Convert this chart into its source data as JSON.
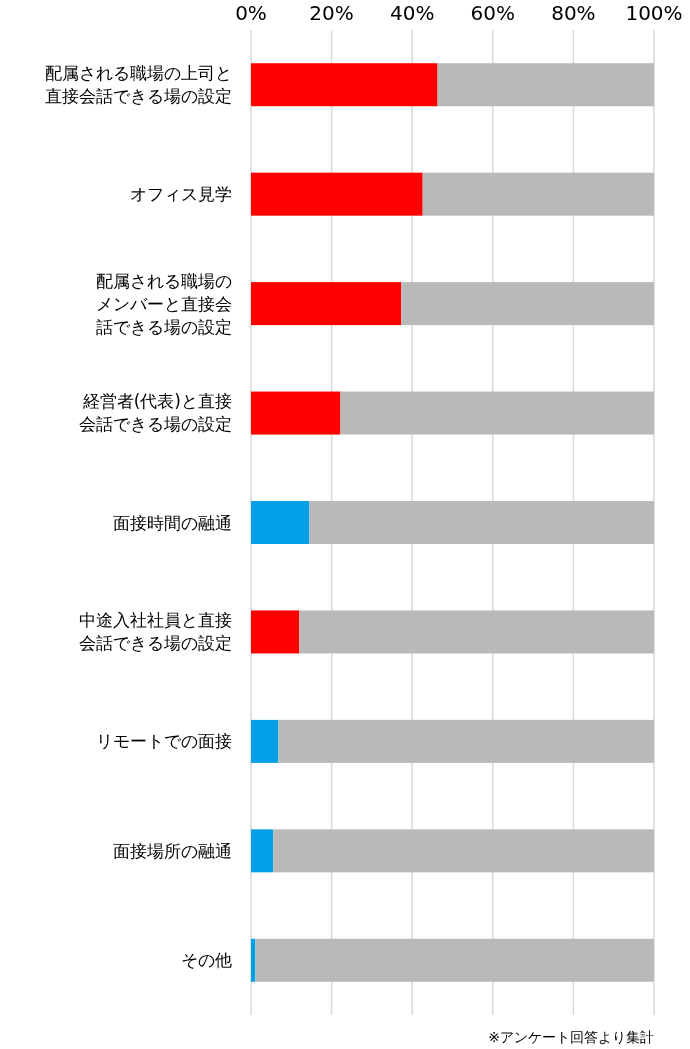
{
  "chart_data": {
    "type": "bar",
    "orientation": "horizontal",
    "stacked": true,
    "categories": [
      "配属される職場の上司と直接会話できる場の設定",
      "オフィス見学",
      "配属される職場のメンバーと直接会話できる場の設定",
      "経営者(代表)と直接会話できる場の設定",
      "面接時間の融通",
      "中途入社社員と直接会話できる場の設定",
      "リモートでの面接",
      "面接場所の融通",
      "その他"
    ],
    "series": [
      {
        "colors": [
          "#ff0000",
          "#ff0000",
          "#ff0000",
          "#ff0000",
          "#03a0e8",
          "#ff0000",
          "#03a0e8",
          "#03a0e8",
          "#03a0e8"
        ],
        "values": [
          46.3,
          42.6,
          37.3,
          22.2,
          14.5,
          12.0,
          6.8,
          5.5,
          1.1
        ]
      },
      {
        "color": "#b9b9b9",
        "values": [
          53.7,
          57.4,
          62.7,
          77.8,
          85.5,
          88.0,
          93.2,
          94.5,
          98.9
        ]
      }
    ],
    "xlim": [
      0,
      100
    ],
    "xticks": [
      {
        "value": 0,
        "label": "0%"
      },
      {
        "value": 20,
        "label": "20%"
      },
      {
        "value": 40,
        "label": "40%"
      },
      {
        "value": 60,
        "label": "60%"
      },
      {
        "value": 80,
        "label": "80%"
      },
      {
        "value": 100,
        "label": "100%"
      }
    ],
    "grid": "x",
    "annotations": [
      "※アンケート回答より集計"
    ]
  }
}
